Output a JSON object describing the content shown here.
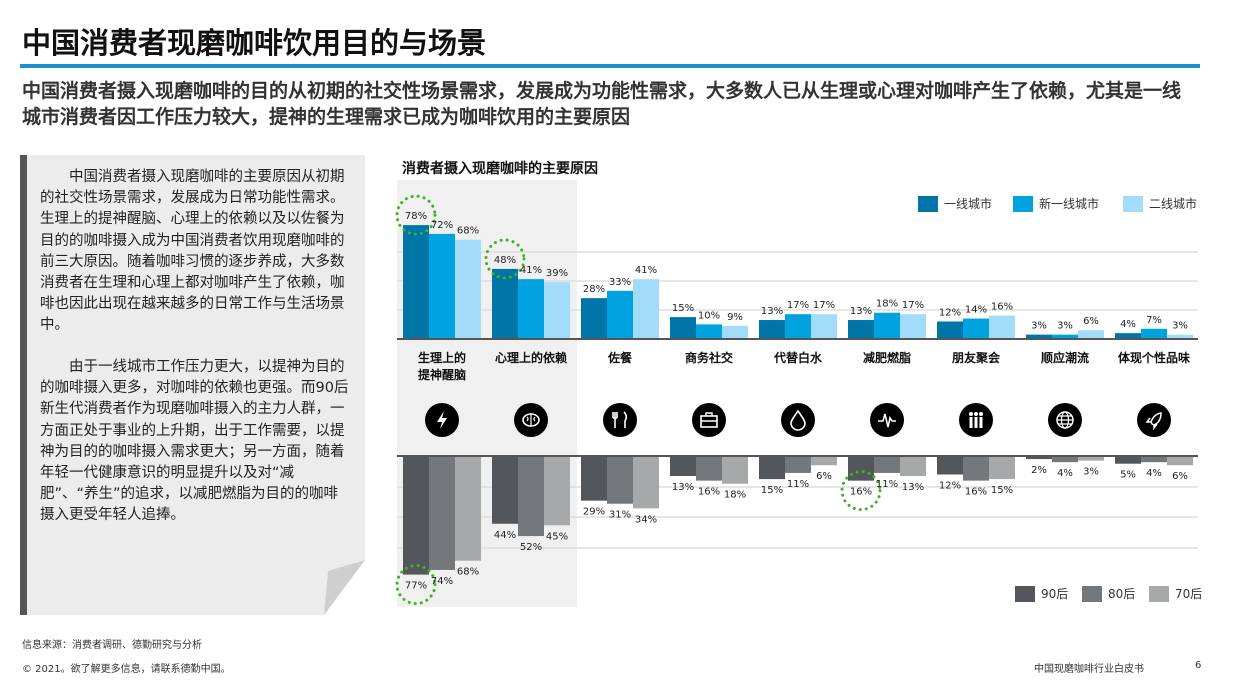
{
  "title": "中国消费者现磨咖啡饮用目的与场景",
  "subtitle": "中国消费者摄入现磨咖啡的目的从初期的社交性场景需求，发展成为功能性需求，大多数人已从生理或心理对咖啡产生了依赖，尤其是一线城市消费者因工作压力较大，提神的生理需求已成为咖啡饮用的主要原因",
  "panel": {
    "paragraph1": "中国消费者摄入现磨咖啡的主要原因从初期的社交性场景需求，发展成为日常功能性需求。生理上的提神醒脑、心理上的依赖以及以佐餐为目的的咖啡摄入成为中国消费者饮用现磨咖啡的前三大原因。随着咖啡习惯的逐步养成，大多数消费者在生理和心理上都对咖啡产生了依赖，咖啡也因此出现在越来越多的日常工作与生活场景中。",
    "paragraph2": "由于一线城市工作压力更大，以提神为目的的咖啡摄入更多，对咖啡的依赖也更强。而90后新生代消费者作为现磨咖啡摄入的主力人群，一方面正处于事业的上升期，出于工作需要，以提神为目的的咖啡摄入需求更大；另一方面，随着年轻一代健康意识的明显提升以及对“减肥”、“养生”的追求，以减肥燃脂为目的的咖啡摄入更受年轻人追捧。"
  },
  "chart_data": {
    "type": "bar",
    "title": "消费者摄入现磨咖啡的主要原因",
    "categories": [
      "生理上的提神醒脑",
      "心理上的依赖",
      "佐餐",
      "商务社交",
      "代替白水",
      "减肥燃脂",
      "朋友聚会",
      "顺应潮流",
      "体现个性品味"
    ],
    "icons": [
      "lightning-icon",
      "brain-icon",
      "fork-knife-icon",
      "briefcase-icon",
      "water-drop-icon",
      "heartbeat-icon",
      "people-icon",
      "globe-icon",
      "rocket-icon"
    ],
    "top": {
      "direction": "up",
      "series": [
        {
          "name": "一线城市",
          "color": "#0076a8",
          "values": [
            78,
            48,
            28,
            15,
            13,
            13,
            12,
            3,
            4
          ]
        },
        {
          "name": "新一线城市",
          "color": "#00a3e0",
          "values": [
            72,
            41,
            33,
            10,
            17,
            18,
            14,
            3,
            7
          ]
        },
        {
          "name": "二线城市",
          "color": "#a3dcfa",
          "values": [
            68,
            39,
            41,
            9,
            17,
            17,
            16,
            6,
            3
          ]
        }
      ]
    },
    "bottom": {
      "direction": "down",
      "series": [
        {
          "name": "90后",
          "color": "#53565a",
          "values": [
            77,
            44,
            29,
            13,
            15,
            16,
            12,
            2,
            5
          ]
        },
        {
          "name": "80后",
          "color": "#75787b",
          "values": [
            74,
            52,
            31,
            16,
            11,
            11,
            16,
            4,
            4
          ]
        },
        {
          "name": "70后",
          "color": "#a7a8aa",
          "values": [
            68,
            45,
            34,
            18,
            6,
            13,
            15,
            3,
            6
          ]
        }
      ]
    },
    "highlighted": [
      "top.0.0",
      "top.0.1",
      "bottom.0.0",
      "bottom.0.5"
    ],
    "highlight_color": "#43b02a",
    "grid": true,
    "legend_top": "top-right",
    "legend_bottom": "bottom-right"
  },
  "footer": {
    "source": "信息来源：消费者调研、德勤研究与分析",
    "copyright": "© 2021。欲了解更多信息，请联系德勤中国。",
    "report": "中国现磨咖啡行业白皮书",
    "page": "6"
  }
}
